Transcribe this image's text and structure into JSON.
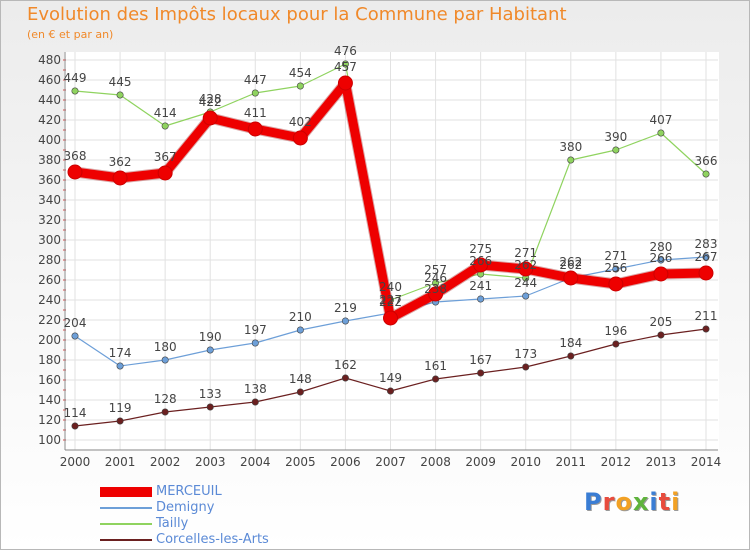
{
  "title": "Evolution des Impôts locaux pour la Commune par Habitant",
  "subtitle": "(en € et par an)",
  "logo": {
    "text": "Proxiti",
    "letters": [
      {
        "ch": "P",
        "color": "#3a7dd4"
      },
      {
        "ch": "r",
        "color": "#e84c3d"
      },
      {
        "ch": "o",
        "color": "#f2a124"
      },
      {
        "ch": "x",
        "color": "#5fb33c"
      },
      {
        "ch": "i",
        "color": "#3a7dd4"
      },
      {
        "ch": "t",
        "color": "#e84c3d"
      },
      {
        "ch": "i",
        "color": "#f2a124"
      }
    ]
  },
  "chart_data": {
    "type": "line",
    "title": "Evolution des Impôts locaux pour la Commune par Habitant",
    "subtitle": "(en € et par an)",
    "x": [
      "2000",
      "2001",
      "2002",
      "2003",
      "2004",
      "2005",
      "2006",
      "2007",
      "2008",
      "2009",
      "2010",
      "2011",
      "2012",
      "2013",
      "2014"
    ],
    "ylim": [
      100,
      480
    ],
    "yticks": [
      "100",
      "120",
      "140",
      "160",
      "180",
      "200",
      "220",
      "240",
      "260",
      "280",
      "300",
      "320",
      "340",
      "360",
      "380",
      "400",
      "420",
      "440",
      "460",
      "480"
    ],
    "grid": true,
    "legend_position": "bottom-left",
    "series": [
      {
        "name": "MERCEUIL",
        "color": "#ee0000",
        "width": 9,
        "marker": 7,
        "values": [
          368,
          362,
          367,
          422,
          411,
          402,
          457,
          222,
          246,
          275,
          271,
          262,
          256,
          266,
          267
        ],
        "labels": [
          "368",
          "362",
          "367",
          "422",
          "411",
          "402",
          "457",
          "222",
          "246",
          "275",
          "271",
          "262",
          "256",
          "266",
          "267"
        ]
      },
      {
        "name": "Demigny",
        "color": "#6d9fd8",
        "width": 1.2,
        "marker": 3.2,
        "values": [
          204,
          174,
          180,
          190,
          197,
          210,
          219,
          227,
          238,
          241,
          244,
          262,
          271,
          280,
          283
        ],
        "labels": [
          "204",
          "174",
          "180",
          "190",
          "197",
          "210",
          "219",
          "227",
          "238",
          "241",
          "244",
          "262",
          "271",
          "280",
          "283"
        ]
      },
      {
        "name": "Tailly",
        "color": "#8fd35f",
        "width": 1.2,
        "marker": 3.2,
        "values": [
          449,
          445,
          414,
          428,
          447,
          454,
          476,
          240,
          257,
          266,
          262,
          380,
          390,
          407,
          366
        ],
        "labels": [
          "449",
          "445",
          "414",
          "428",
          "447",
          "454",
          "476",
          "240",
          "257",
          "266",
          "262",
          "380",
          "390",
          "407",
          "366"
        ]
      },
      {
        "name": "Corcelles-les-Arts",
        "color": "#6b2020",
        "width": 1.2,
        "marker": 3.2,
        "values": [
          114,
          119,
          128,
          133,
          138,
          148,
          162,
          149,
          161,
          167,
          173,
          184,
          196,
          205,
          211
        ],
        "labels": [
          "114",
          "119",
          "128",
          "133",
          "138",
          "148",
          "162",
          "149",
          "161",
          "167",
          "173",
          "184",
          "196",
          "205",
          "211"
        ]
      }
    ]
  }
}
